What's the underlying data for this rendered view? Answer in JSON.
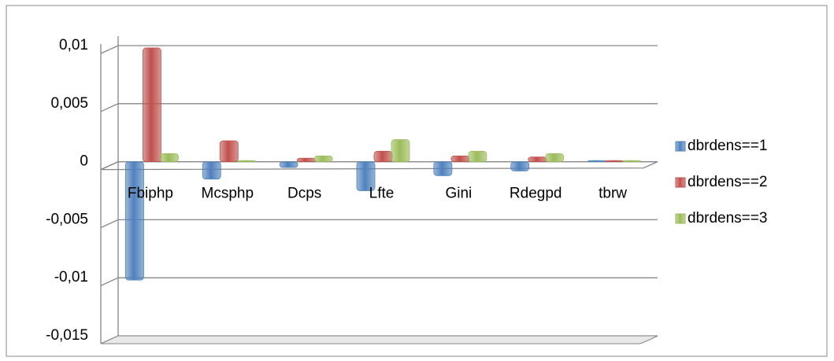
{
  "chart_data": {
    "type": "bar",
    "categories": [
      "Fbiphp",
      "Mcsphp",
      "Dcps",
      "Lfte",
      "Gini",
      "Rdegpd",
      "tbrw"
    ],
    "series": [
      {
        "name": "dbrdens==1",
        "color": "#4f81bd",
        "values": [
          -0.0102,
          -0.0015,
          -0.0005,
          -0.0025,
          -0.0012,
          -0.0008,
          0.0001
        ]
      },
      {
        "name": "dbrdens==2",
        "color": "#c0504d",
        "values": [
          0.0098,
          0.0018,
          0.0003,
          0.0009,
          0.0005,
          0.0004,
          0.0001
        ]
      },
      {
        "name": "dbrdens==3",
        "color": "#9bbb59",
        "values": [
          0.0007,
          0.0001,
          0.0005,
          0.0019,
          0.0009,
          0.0007,
          0.0001
        ]
      }
    ],
    "ylim": [
      -0.015,
      0.01
    ],
    "yticks": [
      {
        "value": -0.015,
        "label": "-0,015"
      },
      {
        "value": -0.01,
        "label": "-0,01"
      },
      {
        "value": -0.005,
        "label": "-0,005"
      },
      0,
      {
        "value": 0.005,
        "label": "0,005"
      },
      {
        "value": 0.01,
        "label": "0,01"
      }
    ],
    "grid": true,
    "legend": "right"
  }
}
